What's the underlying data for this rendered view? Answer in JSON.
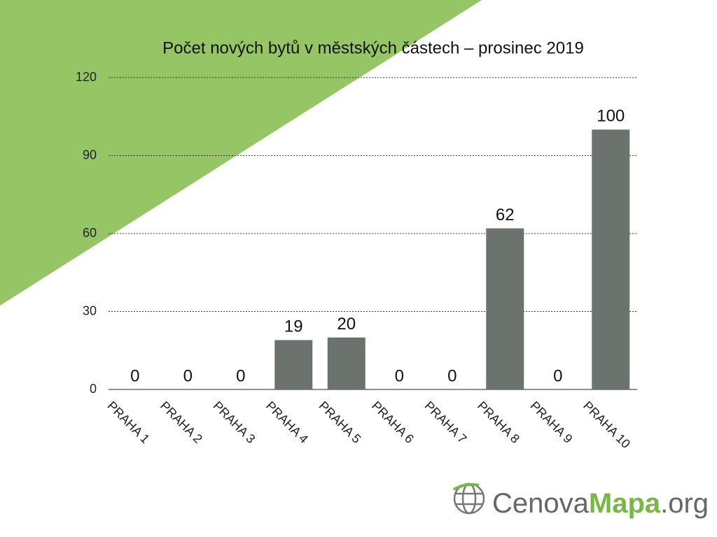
{
  "chart_data": {
    "type": "bar",
    "title": "Počet nových bytů v městských částech – prosinec 2019",
    "categories": [
      "PRAHA 1",
      "PRAHA 2",
      "PRAHA 3",
      "PRAHA 4",
      "PRAHA 5",
      "PRAHA 6",
      "PRAHA 7",
      "PRAHA 8",
      "PRAHA 9",
      "PRAHA 10"
    ],
    "values": [
      0,
      0,
      0,
      19,
      20,
      0,
      0,
      62,
      0,
      100
    ],
    "color": "#6c736f",
    "ylim": [
      0,
      120
    ],
    "yticks": [
      0,
      30,
      60,
      90,
      120
    ],
    "grid": true
  },
  "logo": {
    "part1": "Cenova",
    "part2": "Mapa",
    "part3": ".org"
  }
}
